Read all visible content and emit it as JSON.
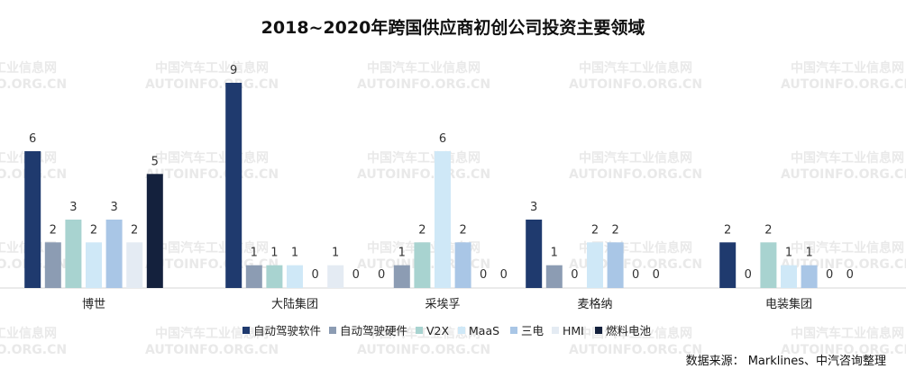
{
  "chart_data": {
    "type": "bar",
    "title": "2018~2020年跨国供应商初创公司投资主要领域",
    "categories": [
      "博世",
      "大陆集团",
      "采埃孚",
      "麦格纳",
      "电装集团"
    ],
    "series": [
      {
        "name": "自动驾驶软件",
        "color": "#1f3a6e",
        "values": [
          6,
          9,
          0,
          3,
          2
        ]
      },
      {
        "name": "自动驾驶硬件",
        "color": "#8c9cb3",
        "values": [
          2,
          1,
          1,
          1,
          0
        ]
      },
      {
        "name": "V2X",
        "color": "#a8d3d0",
        "values": [
          3,
          1,
          2,
          0,
          2
        ]
      },
      {
        "name": "MaaS",
        "color": "#cfe8f7",
        "values": [
          2,
          1,
          6,
          2,
          1
        ]
      },
      {
        "name": "三电",
        "color": "#a9c6e6",
        "values": [
          3,
          0,
          2,
          2,
          1
        ]
      },
      {
        "name": "HMI",
        "color": "#e4ebf3",
        "values": [
          2,
          1,
          0,
          0,
          0
        ]
      },
      {
        "name": "燃料电池",
        "color": "#14213d",
        "values": [
          5,
          0,
          0,
          0,
          0
        ]
      }
    ],
    "ylim": [
      0,
      9
    ],
    "legend_position": "bottom",
    "grid": false,
    "data_labels": true
  },
  "watermark": {
    "line1": "中国汽车工业信息网",
    "line2": "AUTOINFO.ORG.CN"
  },
  "source_note": "数据来源： Marklines、中汽咨询整理"
}
